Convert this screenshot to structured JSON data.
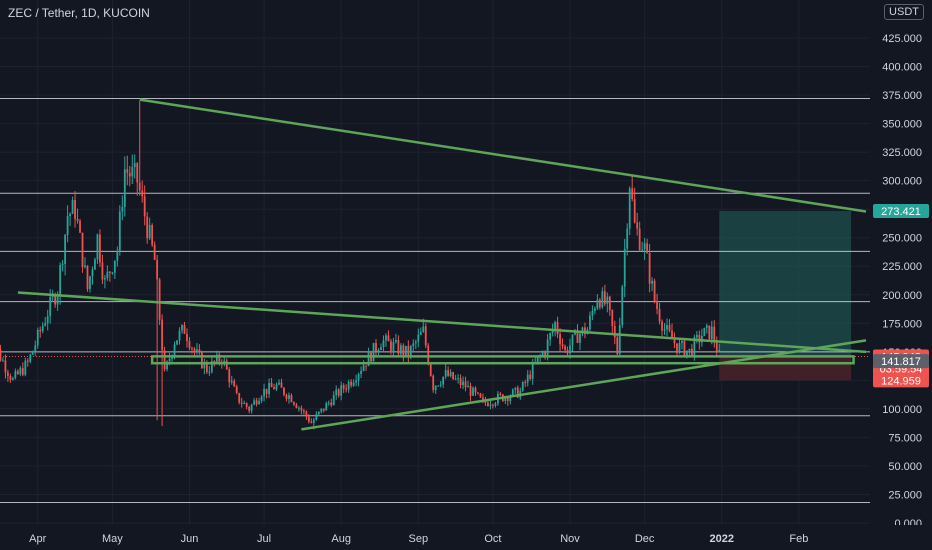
{
  "header": {
    "title": "ZEC / Tether, 1D, KUCOIN"
  },
  "axis": {
    "currency_label": "USDT"
  },
  "colors": {
    "background": "#131722",
    "grid": "#1e2230",
    "up": "#26a69a",
    "down": "#ef5350",
    "trendline": "#5ea55a",
    "hline": "#d1d4dc",
    "text": "#d1d4dc",
    "target": "#1f4f4d",
    "stop": "#4a2229"
  },
  "chart_data": {
    "type": "candlestick",
    "ylim": [
      0,
      450
    ],
    "y_ticks": [
      0,
      25,
      50,
      75,
      100,
      125,
      150,
      175,
      200,
      225,
      250,
      275,
      300,
      325,
      350,
      375,
      400,
      425
    ],
    "y_tick_labels": [
      "0.000",
      "25.000",
      "50.000",
      "75.000",
      "100.000",
      "125.000",
      "150.000",
      "175.000",
      "200.000",
      "225.000",
      "250.000",
      "275.000",
      "300.000",
      "325.000",
      "350.000",
      "375.000",
      "400.000",
      "425.000"
    ],
    "x_range": [
      "2021-03-12",
      "2022-02-28"
    ],
    "x_ticks": [
      {
        "date": "2021-04-01",
        "label": "Apr"
      },
      {
        "date": "2021-05-01",
        "label": "May"
      },
      {
        "date": "2021-06-01",
        "label": "Jun"
      },
      {
        "date": "2021-07-01",
        "label": "Jul"
      },
      {
        "date": "2021-08-01",
        "label": "Aug"
      },
      {
        "date": "2021-09-01",
        "label": "Sep"
      },
      {
        "date": "2021-10-01",
        "label": "Oct"
      },
      {
        "date": "2021-11-01",
        "label": "Nov"
      },
      {
        "date": "2021-12-01",
        "label": "Dec"
      },
      {
        "date": "2022-01-01",
        "label": "2022"
      },
      {
        "date": "2022-02-01",
        "label": "Feb"
      }
    ],
    "close_anchors": [
      [
        "2021-03-12",
        140
      ],
      [
        "2021-03-16",
        150
      ],
      [
        "2021-03-22",
        125
      ],
      [
        "2021-03-28",
        140
      ],
      [
        "2021-04-05",
        185
      ],
      [
        "2021-04-09",
        205
      ],
      [
        "2021-04-13",
        270
      ],
      [
        "2021-04-16",
        275
      ],
      [
        "2021-04-21",
        205
      ],
      [
        "2021-04-25",
        250
      ],
      [
        "2021-04-28",
        210
      ],
      [
        "2021-05-03",
        240
      ],
      [
        "2021-05-06",
        310
      ],
      [
        "2021-05-11",
        300
      ],
      [
        "2021-05-14",
        270
      ],
      [
        "2021-05-18",
        230
      ],
      [
        "2021-05-22",
        130
      ],
      [
        "2021-05-26",
        160
      ],
      [
        "2021-05-30",
        170
      ],
      [
        "2021-06-03",
        150
      ],
      [
        "2021-06-08",
        135
      ],
      [
        "2021-06-14",
        145
      ],
      [
        "2021-06-20",
        110
      ],
      [
        "2021-06-25",
        100
      ],
      [
        "2021-06-30",
        115
      ],
      [
        "2021-07-06",
        120
      ],
      [
        "2021-07-12",
        110
      ],
      [
        "2021-07-20",
        88
      ],
      [
        "2021-07-28",
        108
      ],
      [
        "2021-08-05",
        125
      ],
      [
        "2021-08-12",
        145
      ],
      [
        "2021-08-17",
        160
      ],
      [
        "2021-08-22",
        155
      ],
      [
        "2021-08-28",
        148
      ],
      [
        "2021-09-03",
        168
      ],
      [
        "2021-09-07",
        120
      ],
      [
        "2021-09-12",
        130
      ],
      [
        "2021-09-20",
        120
      ],
      [
        "2021-09-27",
        105
      ],
      [
        "2021-10-04",
        110
      ],
      [
        "2021-10-12",
        115
      ],
      [
        "2021-10-17",
        135
      ],
      [
        "2021-10-22",
        152
      ],
      [
        "2021-10-26",
        175
      ],
      [
        "2021-10-30",
        150
      ],
      [
        "2021-11-04",
        165
      ],
      [
        "2021-11-08",
        170
      ],
      [
        "2021-11-12",
        200
      ],
      [
        "2021-11-16",
        190
      ],
      [
        "2021-11-20",
        150
      ],
      [
        "2021-11-23",
        240
      ],
      [
        "2021-11-25",
        300
      ],
      [
        "2021-11-27",
        260
      ],
      [
        "2021-12-01",
        240
      ],
      [
        "2021-12-05",
        195
      ],
      [
        "2021-12-09",
        170
      ],
      [
        "2021-12-14",
        155
      ],
      [
        "2021-12-19",
        150
      ],
      [
        "2021-12-24",
        165
      ],
      [
        "2021-12-28",
        168
      ],
      [
        "2021-12-31",
        146
      ]
    ],
    "wick_extremes": [
      {
        "date": "2021-05-12",
        "type": "high",
        "value": 370
      },
      {
        "date": "2021-05-19",
        "type": "low",
        "value": 90
      },
      {
        "date": "2021-05-21",
        "type": "low",
        "value": 85
      },
      {
        "date": "2021-07-21",
        "type": "low",
        "value": 82
      },
      {
        "date": "2021-11-26",
        "type": "high",
        "value": 305
      }
    ],
    "horizontal_lines": [
      18,
      94,
      150,
      194,
      238,
      289,
      372
    ],
    "trendlines": [
      {
        "from": [
          "2021-05-12",
          371
        ],
        "to": [
          "2022-02-28",
          273
        ]
      },
      {
        "from": [
          "2021-03-24",
          202
        ],
        "to": [
          "2022-02-28",
          150
        ]
      },
      {
        "from": [
          "2021-07-16",
          82
        ],
        "to": [
          "2022-02-28",
          160
        ]
      }
    ],
    "support_zone": {
      "from": "2021-05-17",
      "to": "2022-02-23",
      "low": 140,
      "high": 146
    },
    "position": {
      "from": "2021-12-31",
      "to": "2022-02-22",
      "entry": 145.948,
      "target": 273.421,
      "stop": 124.959
    },
    "price_labels": [
      {
        "value": 273.421,
        "text": "273.421",
        "color": "#26a69a"
      },
      {
        "value": 145.948,
        "text": "145.948",
        "color": "#ef5350",
        "countdown": "03:59:54"
      },
      {
        "value": 141.817,
        "text": "141.817",
        "color": "#5d606b"
      },
      {
        "value": 124.959,
        "text": "124.959",
        "color": "#ef5350"
      }
    ]
  }
}
